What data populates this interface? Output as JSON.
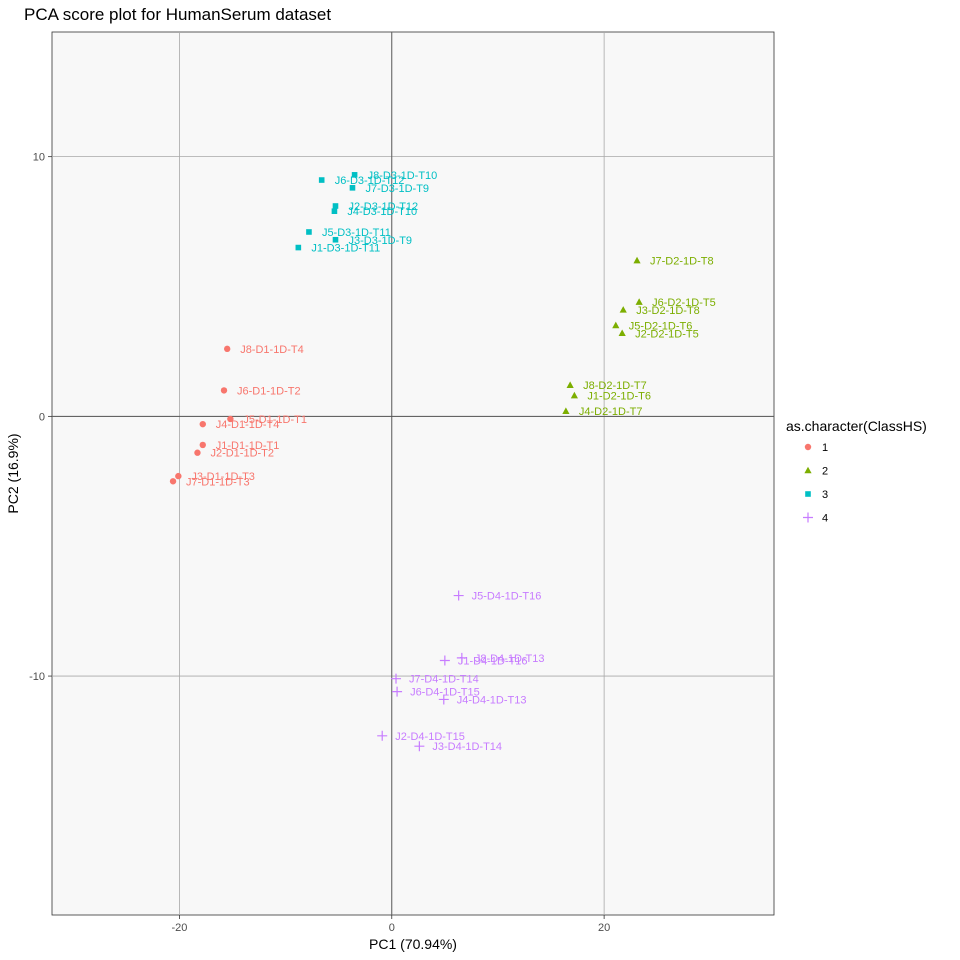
{
  "chart_data": {
    "type": "scatter",
    "title": "PCA score plot for HumanSerum dataset",
    "xlabel": "PC1 (70.94%)",
    "ylabel": "PC2 (16.9%)",
    "xlim": [
      -32,
      36
    ],
    "ylim": [
      -19.2,
      14.8
    ],
    "x_ticks": [
      -20,
      0,
      20
    ],
    "y_ticks": [
      -10,
      0,
      10
    ],
    "grid": true,
    "legend": {
      "title": "as.character(ClassHS)",
      "placement": "right"
    },
    "series": [
      {
        "name": "1",
        "color": "#F8766D",
        "marker": "circle",
        "points": [
          {
            "label": "J8-D1-1D-T4",
            "x": -15.5,
            "y": 2.6
          },
          {
            "label": "J6-D1-1D-T2",
            "x": -15.8,
            "y": 1.0
          },
          {
            "label": "J5-D1-1D-T1",
            "x": -15.2,
            "y": -0.1
          },
          {
            "label": "J4-D1-1D-T4",
            "x": -17.8,
            "y": -0.3
          },
          {
            "label": "J1-D1-1D-T1",
            "x": -17.8,
            "y": -1.1
          },
          {
            "label": "J2-D1-1D-T2",
            "x": -18.3,
            "y": -1.4
          },
          {
            "label": "J3-D1-1D-T3",
            "x": -20.1,
            "y": -2.3
          },
          {
            "label": "J7-D1-1D-T3",
            "x": -20.6,
            "y": -2.5
          }
        ]
      },
      {
        "name": "2",
        "color": "#7CAE00",
        "marker": "triangle",
        "points": [
          {
            "label": "J7-D2-1D-T8",
            "x": 23.1,
            "y": 6.0
          },
          {
            "label": "J6-D2-1D-T5",
            "x": 23.3,
            "y": 4.4
          },
          {
            "label": "J3-D2-1D-T8",
            "x": 21.8,
            "y": 4.1
          },
          {
            "label": "J5-D2-1D-T6",
            "x": 21.1,
            "y": 3.5
          },
          {
            "label": "J2-D2-1D-T5",
            "x": 21.7,
            "y": 3.2
          },
          {
            "label": "J8-D2-1D-T7",
            "x": 16.8,
            "y": 1.2
          },
          {
            "label": "J1-D2-1D-T6",
            "x": 17.2,
            "y": 0.8
          },
          {
            "label": "J4-D2-1D-T7",
            "x": 16.4,
            "y": 0.2
          }
        ]
      },
      {
        "name": "3",
        "color": "#00BFC4",
        "marker": "square",
        "points": [
          {
            "label": "J8-D3-1D-T10",
            "x": -3.5,
            "y": 9.3
          },
          {
            "label": "J6-D3-1D-T12",
            "x": -6.6,
            "y": 9.1
          },
          {
            "label": "J7-D3-1D-T9",
            "x": -3.7,
            "y": 8.8
          },
          {
            "label": "J2-D3-1D-T12",
            "x": -5.3,
            "y": 8.1
          },
          {
            "label": "J4-D3-1D-T10",
            "x": -5.4,
            "y": 7.9
          },
          {
            "label": "J5-D3-1D-T11",
            "x": -7.8,
            "y": 7.1
          },
          {
            "label": "J3-D3-1D-T9",
            "x": -5.3,
            "y": 6.8
          },
          {
            "label": "J1-D3-1D-T11",
            "x": -8.8,
            "y": 6.5
          }
        ]
      },
      {
        "name": "4",
        "color": "#C77CFF",
        "marker": "plus",
        "points": [
          {
            "label": "J5-D4-1D-T16",
            "x": 6.3,
            "y": -6.9
          },
          {
            "label": "J8-D4-1D-T13",
            "x": 6.6,
            "y": -9.3
          },
          {
            "label": "J1-D4-1D-T16",
            "x": 5.0,
            "y": -9.4
          },
          {
            "label": "J7-D4-1D-T14",
            "x": 0.4,
            "y": -10.1
          },
          {
            "label": "J6-D4-1D-T15",
            "x": 0.5,
            "y": -10.6
          },
          {
            "label": "J4-D4-1D-T13",
            "x": 4.9,
            "y": -10.9
          },
          {
            "label": "J2-D4-1D-T15",
            "x": -0.9,
            "y": -12.3
          },
          {
            "label": "J3-D4-1D-T14",
            "x": 2.6,
            "y": -12.7
          }
        ]
      }
    ]
  }
}
